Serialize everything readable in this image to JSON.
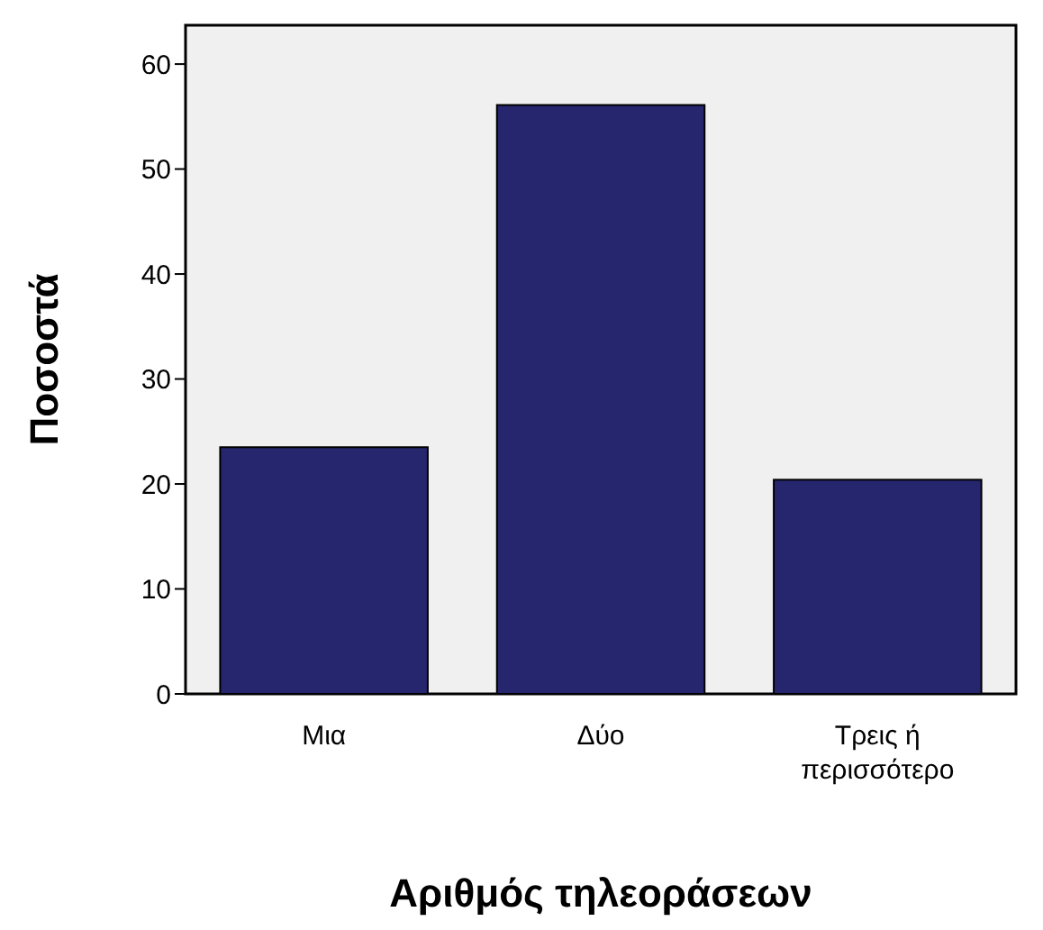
{
  "chart_data": {
    "type": "bar",
    "xlabel": "Αριθμός τηλεοράσεων",
    "ylabel": "Ποσοστά",
    "categories": [
      "Μια",
      "Δύο",
      "Τρεις ή περισσότερο"
    ],
    "values": [
      23.5,
      56.1,
      20.4
    ],
    "color": "#26266e",
    "ylim": [
      0,
      63.7
    ],
    "yticks": [
      0,
      10,
      20,
      30,
      40,
      50,
      60
    ],
    "grid": false
  }
}
